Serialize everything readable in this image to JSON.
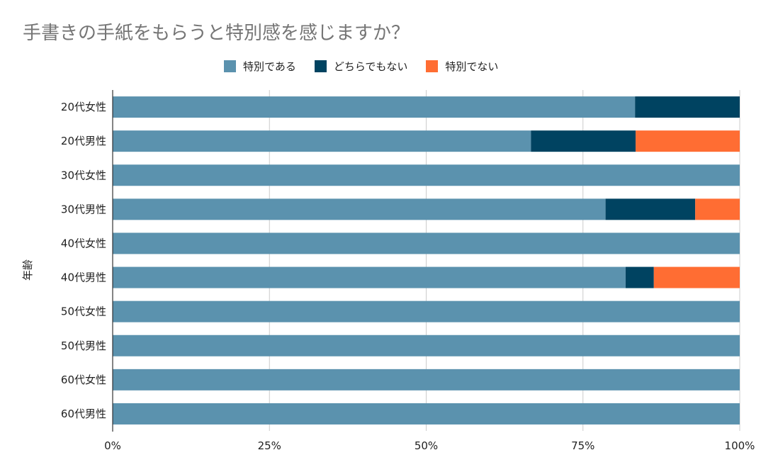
{
  "chart_data": {
    "type": "bar",
    "orientation": "horizontal",
    "stacked": "percent",
    "title": "手書きの手紙をもらうと特別感を感じますか？",
    "ylabel": "年齢",
    "xlabel": "",
    "categories": [
      "20代女性",
      "20代男性",
      "30代女性",
      "30代男性",
      "40代女性",
      "40代男性",
      "50代女性",
      "50代男性",
      "60代女性",
      "60代男性"
    ],
    "series": [
      {
        "name": "特別である",
        "color": "#5b92ae",
        "values": [
          83.3,
          66.7,
          100,
          78.6,
          100,
          81.8,
          100,
          100,
          100,
          100
        ]
      },
      {
        "name": "どちらでもない",
        "color": "#004361",
        "values": [
          16.7,
          16.7,
          0,
          14.3,
          0,
          4.5,
          0,
          0,
          0,
          0
        ]
      },
      {
        "name": "特別でない",
        "color": "#ff6d33",
        "values": [
          0,
          16.6,
          0,
          7.1,
          0,
          13.7,
          0,
          0,
          0,
          0
        ]
      }
    ],
    "xlim": [
      0,
      100
    ],
    "xticks": [
      "0%",
      "25%",
      "50%",
      "75%",
      "100%"
    ],
    "xtick_values": [
      0,
      25,
      50,
      75,
      100
    ],
    "grid": true,
    "legend_position": "top"
  }
}
